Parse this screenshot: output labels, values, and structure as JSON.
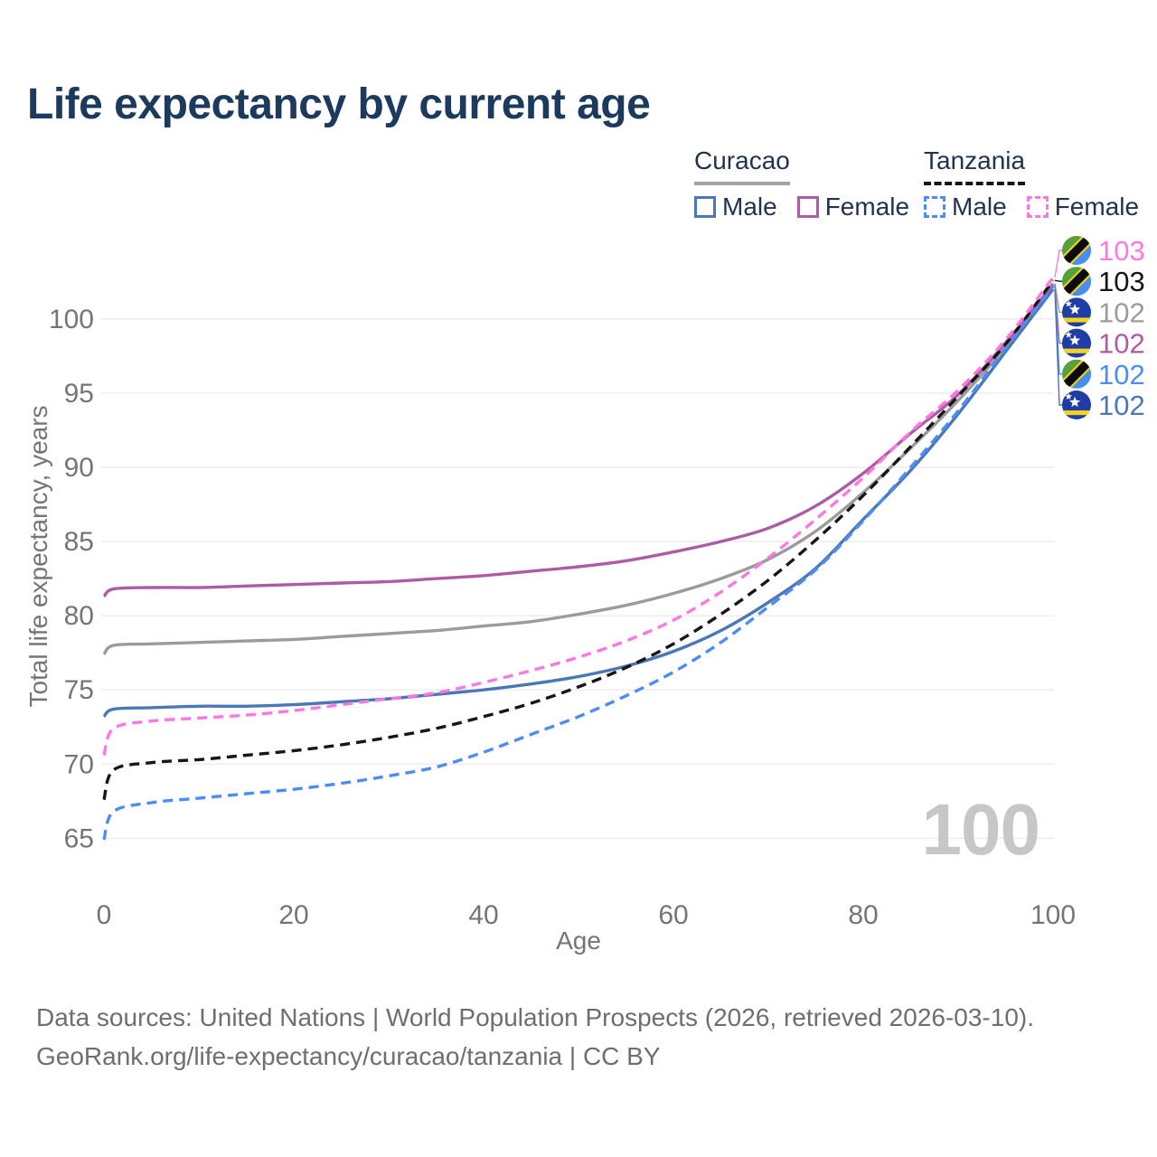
{
  "title": "Life expectancy by current age",
  "legend": {
    "groups": [
      {
        "country": "Curacao",
        "line_style": "solid",
        "underline_color": "#a3a3a3",
        "items": [
          {
            "label": "Male",
            "color": "#4a77b5",
            "dashed": false
          },
          {
            "label": "Female",
            "color": "#ad5ca4",
            "dashed": false
          }
        ]
      },
      {
        "country": "Tanzania",
        "line_style": "dashed",
        "underline_color": "#161616",
        "items": [
          {
            "label": "Male",
            "color": "#4b8df5",
            "dashed": true
          },
          {
            "label": "Female",
            "color": "#ff78df",
            "dashed": true
          }
        ]
      }
    ]
  },
  "watermark": "100",
  "chart_data": {
    "type": "line",
    "title": "Life expectancy by current age",
    "xlabel": "Age",
    "ylabel": "Total life expectancy, years",
    "x_ticks": [
      0,
      20,
      40,
      60,
      80,
      100
    ],
    "y_ticks": [
      65,
      70,
      75,
      80,
      85,
      90,
      95,
      100
    ],
    "xlim": [
      0,
      100
    ],
    "ylim": [
      63.5,
      104.5
    ],
    "grid": "horizontal",
    "legend_position": "top-right",
    "x": [
      0,
      1,
      5,
      10,
      15,
      20,
      25,
      30,
      35,
      40,
      45,
      50,
      55,
      60,
      65,
      70,
      75,
      80,
      85,
      90,
      95,
      100
    ],
    "series": [
      {
        "name": "Curacao",
        "country": "Curacao",
        "color": "#9b9b9b",
        "dashed": false,
        "values": [
          77.4,
          78.0,
          78.1,
          78.2,
          78.3,
          78.4,
          78.6,
          78.8,
          79.0,
          79.3,
          79.6,
          80.1,
          80.7,
          81.5,
          82.5,
          83.8,
          85.7,
          88.3,
          91.3,
          94.5,
          98.1,
          102.4
        ]
      },
      {
        "name": "Curacao Female",
        "country": "Curacao",
        "color": "#ad5ca4",
        "dashed": false,
        "values": [
          81.3,
          81.8,
          81.9,
          81.9,
          82.0,
          82.1,
          82.2,
          82.3,
          82.5,
          82.7,
          83.0,
          83.3,
          83.7,
          84.3,
          85.0,
          85.9,
          87.4,
          89.6,
          92.3,
          94.9,
          98.4,
          102.3
        ]
      },
      {
        "name": "Curacao Male",
        "country": "Curacao",
        "color": "#4a77b5",
        "dashed": false,
        "values": [
          73.2,
          73.7,
          73.8,
          73.9,
          73.9,
          74.0,
          74.2,
          74.4,
          74.7,
          75.0,
          75.4,
          75.9,
          76.6,
          77.6,
          79.0,
          80.9,
          83.2,
          86.5,
          89.8,
          93.6,
          97.8,
          102.0
        ]
      },
      {
        "name": "Tanzania",
        "country": "Tanzania",
        "color": "#161616",
        "dashed": true,
        "values": [
          67.6,
          69.6,
          70.1,
          70.3,
          70.6,
          70.9,
          71.3,
          71.8,
          72.4,
          73.2,
          74.1,
          75.2,
          76.5,
          78.1,
          80.1,
          82.4,
          85.1,
          88.1,
          91.4,
          94.8,
          98.3,
          102.6
        ]
      },
      {
        "name": "Tanzania Male",
        "country": "Tanzania",
        "color": "#4b8df5",
        "dashed": true,
        "values": [
          64.9,
          66.8,
          67.4,
          67.7,
          68.0,
          68.3,
          68.7,
          69.2,
          69.8,
          70.8,
          72.0,
          73.2,
          74.6,
          76.2,
          78.2,
          80.6,
          83.1,
          86.4,
          90.0,
          93.8,
          98.0,
          102.2
        ]
      },
      {
        "name": "Tanzania Female",
        "country": "Tanzania",
        "color": "#ff78df",
        "dashed": true,
        "values": [
          70.6,
          72.4,
          72.9,
          73.1,
          73.3,
          73.6,
          74.0,
          74.4,
          74.8,
          75.5,
          76.3,
          77.2,
          78.3,
          79.7,
          81.6,
          83.9,
          86.5,
          89.3,
          92.4,
          95.2,
          98.6,
          102.8
        ]
      }
    ]
  },
  "end_labels": [
    {
      "series": "Tanzania Female",
      "label": "103"
    },
    {
      "series": "Tanzania",
      "label": "103"
    },
    {
      "series": "Curacao",
      "label": "102"
    },
    {
      "series": "Curacao Female",
      "label": "102"
    },
    {
      "series": "Tanzania Male",
      "label": "102"
    },
    {
      "series": "Curacao Male",
      "label": "102"
    }
  ],
  "footer": {
    "line1": "Data sources: United Nations | World Population Prospects (2026, retrieved 2026-03-10).",
    "line2": "GeoRank.org/life-expectancy/curacao/tanzania | CC BY"
  }
}
